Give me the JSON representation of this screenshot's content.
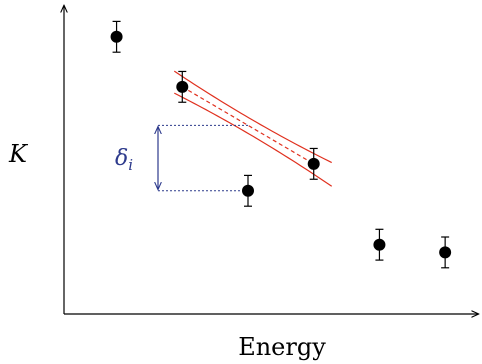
{
  "chart_data": {
    "type": "scatter",
    "xlabel": "Energy",
    "ylabel": "K",
    "ticks": "none",
    "grid": false,
    "xlim": [
      0,
      6.3
    ],
    "ylim": [
      0,
      8
    ],
    "points": [
      {
        "x": 0.8,
        "y": 7.2,
        "err": 0.4
      },
      {
        "x": 1.8,
        "y": 5.9,
        "err": 0.4
      },
      {
        "x": 2.8,
        "y": 3.2,
        "err": 0.4
      },
      {
        "x": 3.8,
        "y": 3.9,
        "err": 0.4
      },
      {
        "x": 4.8,
        "y": 1.8,
        "err": 0.4
      },
      {
        "x": 5.8,
        "y": 1.6,
        "err": 0.4
      }
    ],
    "fit": {
      "from_point": 1,
      "to_point": 3,
      "line_style": "dashed",
      "band_style": "solid",
      "color": "#e0301e"
    },
    "annotation": {
      "label": "δ",
      "subscript": "i",
      "from_point": 2,
      "to_fit_at_x": 2.8,
      "color": "#2d3a8c"
    }
  }
}
